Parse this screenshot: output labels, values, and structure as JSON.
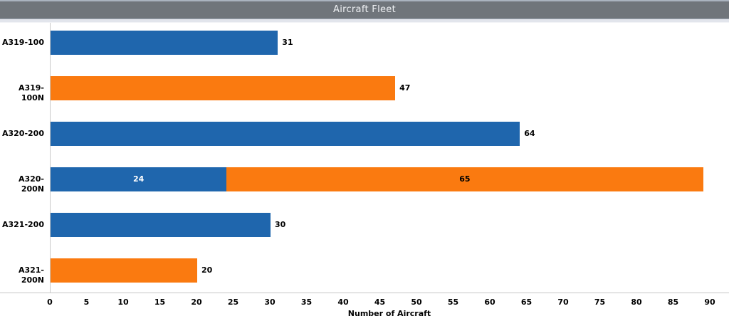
{
  "title_bar": {
    "title": "Aircraft Fleet"
  },
  "chart_data": {
    "type": "bar",
    "orientation": "horizontal",
    "title": "Aircraft Fleet",
    "xlabel": "Number of Aircraft",
    "xlim": [
      0,
      92.5
    ],
    "xticks": [
      0,
      5,
      10,
      15,
      20,
      25,
      30,
      35,
      40,
      45,
      50,
      55,
      60,
      65,
      70,
      75,
      80,
      85,
      90
    ],
    "grid": false,
    "legend_position": "none",
    "categories": [
      "A319-100",
      "A319-100N",
      "A320-200",
      "A320-200N",
      "A321-200",
      "A321-200N"
    ],
    "series": [
      {
        "name": "blue",
        "color": "#1f66ad",
        "values": [
          31,
          0,
          64,
          24,
          30,
          0
        ]
      },
      {
        "name": "orange",
        "color": "#fa7a10",
        "values": [
          0,
          47,
          0,
          65,
          0,
          20
        ]
      }
    ],
    "rows": [
      {
        "label": "A319-100",
        "segments": [
          {
            "series": "blue",
            "value": 31,
            "value_label": "31",
            "label_style": "outside-black"
          }
        ]
      },
      {
        "label": "A319-100N",
        "segments": [
          {
            "series": "orange",
            "value": 47,
            "value_label": "47",
            "label_style": "outside-black"
          }
        ]
      },
      {
        "label": "A320-200",
        "segments": [
          {
            "series": "blue",
            "value": 64,
            "value_label": "64",
            "label_style": "outside-black"
          }
        ]
      },
      {
        "label": "A320-200N",
        "segments": [
          {
            "series": "blue",
            "value": 24,
            "value_label": "24",
            "label_style": "inside-white"
          },
          {
            "series": "orange",
            "value": 65,
            "value_label": "65",
            "label_style": "inside-black"
          }
        ]
      },
      {
        "label": "A321-200",
        "segments": [
          {
            "series": "blue",
            "value": 30,
            "value_label": "30",
            "label_style": "outside-black"
          }
        ]
      },
      {
        "label": "A321-200N",
        "segments": [
          {
            "series": "orange",
            "value": 20,
            "value_label": "20",
            "label_style": "outside-black"
          }
        ]
      }
    ],
    "colors": {
      "blue": "#1f66ad",
      "orange": "#fa7a10",
      "axis_line": "#c6c6c6",
      "title_bar_bg": "#70757b",
      "title_text": "#eef0f3",
      "label_text": "#000000"
    }
  }
}
